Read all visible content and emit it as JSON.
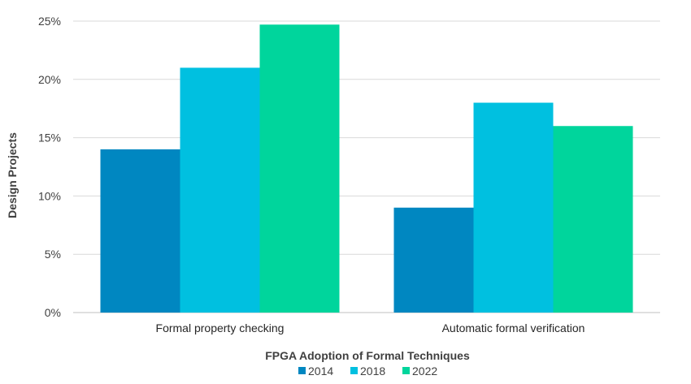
{
  "chart_data": {
    "type": "bar",
    "categories": [
      "Formal property checking",
      "Automatic formal verification"
    ],
    "series": [
      {
        "name": "2014",
        "values": [
          14,
          9
        ],
        "color": "#0087C1"
      },
      {
        "name": "2018",
        "values": [
          21,
          18
        ],
        "color": "#00C0E0"
      },
      {
        "name": "2022",
        "values": [
          24.7,
          16
        ],
        "color": "#00D59C"
      }
    ],
    "xlabel": "FPGA Adoption of Formal Techniques",
    "ylabel": "Design Projects",
    "ylim": [
      0,
      25
    ],
    "yticks": [
      0,
      5,
      10,
      15,
      20,
      25
    ],
    "ytick_labels": [
      "0%",
      "5%",
      "10%",
      "15%",
      "20%",
      "25%"
    ],
    "grid": true,
    "legend_position": "bottom"
  }
}
